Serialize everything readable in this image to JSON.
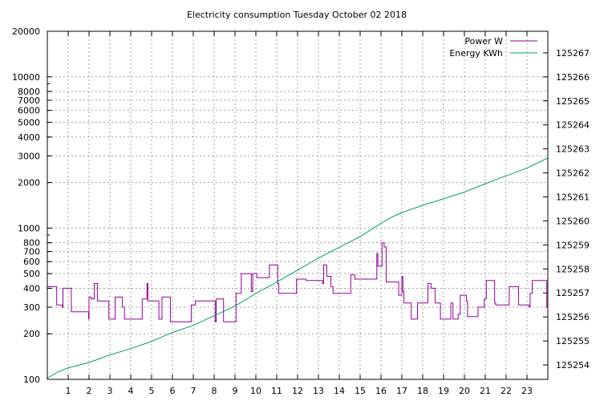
{
  "chart_data": {
    "type": "line",
    "title": "Electricity consumption Tuesday October 02 2018",
    "xlabel": "",
    "x_ticks": [
      1,
      2,
      3,
      4,
      5,
      6,
      7,
      8,
      9,
      10,
      11,
      12,
      13,
      14,
      15,
      16,
      17,
      18,
      19,
      20,
      21,
      22,
      23
    ],
    "xlim": [
      0,
      24
    ],
    "y_left": {
      "label": "",
      "scale": "log",
      "lim": [
        100,
        20000
      ],
      "ticks": [
        100,
        200,
        300,
        400,
        500,
        600,
        700,
        800,
        1000,
        2000,
        3000,
        4000,
        5000,
        6000,
        7000,
        8000,
        10000,
        20000
      ]
    },
    "y_right": {
      "label": "",
      "scale": "linear",
      "lim": [
        125253.4,
        125267.9
      ],
      "ticks": [
        125254,
        125255,
        125256,
        125257,
        125258,
        125259,
        125260,
        125261,
        125262,
        125263,
        125264,
        125265,
        125266,
        125267
      ]
    },
    "grid": true,
    "legend_position": "top-right",
    "series": [
      {
        "name": "Power W",
        "axis": "left",
        "color": "#940094",
        "step": true,
        "points": [
          [
            0,
            410
          ],
          [
            0.4,
            410
          ],
          [
            0.45,
            310
          ],
          [
            0.7,
            310
          ],
          [
            0.72,
            300
          ],
          [
            0.75,
            400
          ],
          [
            1.1,
            400
          ],
          [
            1.15,
            280
          ],
          [
            1.95,
            280
          ],
          [
            1.98,
            250
          ],
          [
            2.0,
            350
          ],
          [
            2.1,
            340
          ],
          [
            2.25,
            430
          ],
          [
            2.4,
            330
          ],
          [
            2.9,
            330
          ],
          [
            2.95,
            250
          ],
          [
            3.2,
            250
          ],
          [
            3.25,
            350
          ],
          [
            3.55,
            350
          ],
          [
            3.6,
            300
          ],
          [
            3.7,
            250
          ],
          [
            4.5,
            250
          ],
          [
            4.55,
            340
          ],
          [
            4.75,
            340
          ],
          [
            4.78,
            430
          ],
          [
            4.82,
            330
          ],
          [
            5.3,
            330
          ],
          [
            5.35,
            250
          ],
          [
            5.45,
            250
          ],
          [
            5.5,
            350
          ],
          [
            5.85,
            350
          ],
          [
            5.9,
            240
          ],
          [
            6.85,
            240
          ],
          [
            6.9,
            310
          ],
          [
            7.0,
            310
          ],
          [
            7.1,
            330
          ],
          [
            8.0,
            330
          ],
          [
            8.05,
            240
          ],
          [
            8.1,
            340
          ],
          [
            8.4,
            340
          ],
          [
            8.45,
            240
          ],
          [
            9.0,
            240
          ],
          [
            9.05,
            370
          ],
          [
            9.25,
            370
          ],
          [
            9.3,
            500
          ],
          [
            9.75,
            500
          ],
          [
            9.78,
            380
          ],
          [
            9.85,
            500
          ],
          [
            10.0,
            500
          ],
          [
            10.05,
            470
          ],
          [
            10.6,
            470
          ],
          [
            10.65,
            570
          ],
          [
            11.0,
            570
          ],
          [
            11.05,
            430
          ],
          [
            11.1,
            370
          ],
          [
            11.9,
            370
          ],
          [
            11.95,
            460
          ],
          [
            12.35,
            460
          ],
          [
            12.4,
            450
          ],
          [
            13.15,
            450
          ],
          [
            13.2,
            430
          ],
          [
            13.25,
            570
          ],
          [
            13.35,
            570
          ],
          [
            13.4,
            480
          ],
          [
            13.55,
            480
          ],
          [
            13.6,
            410
          ],
          [
            13.7,
            370
          ],
          [
            14.5,
            370
          ],
          [
            14.55,
            490
          ],
          [
            14.7,
            490
          ],
          [
            14.75,
            460
          ],
          [
            15.75,
            460
          ],
          [
            15.8,
            680
          ],
          [
            15.85,
            560
          ],
          [
            16.0,
            560
          ],
          [
            16.05,
            800
          ],
          [
            16.1,
            800
          ],
          [
            16.15,
            750
          ],
          [
            16.25,
            440
          ],
          [
            16.8,
            440
          ],
          [
            16.85,
            360
          ],
          [
            16.95,
            360
          ],
          [
            17.0,
            480
          ],
          [
            17.05,
            380
          ],
          [
            17.1,
            320
          ],
          [
            17.4,
            320
          ],
          [
            17.45,
            250
          ],
          [
            17.7,
            250
          ],
          [
            17.75,
            320
          ],
          [
            18.2,
            320
          ],
          [
            18.25,
            430
          ],
          [
            18.35,
            430
          ],
          [
            18.4,
            400
          ],
          [
            18.5,
            400
          ],
          [
            18.6,
            320
          ],
          [
            18.8,
            320
          ],
          [
            18.85,
            250
          ],
          [
            19.3,
            250
          ],
          [
            19.35,
            320
          ],
          [
            19.45,
            250
          ],
          [
            19.65,
            250
          ],
          [
            19.7,
            270
          ],
          [
            19.8,
            360
          ],
          [
            20.05,
            360
          ],
          [
            20.1,
            330
          ],
          [
            20.15,
            260
          ],
          [
            20.6,
            260
          ],
          [
            20.65,
            300
          ],
          [
            20.9,
            300
          ],
          [
            20.95,
            340
          ],
          [
            21.05,
            450
          ],
          [
            21.4,
            450
          ],
          [
            21.45,
            320
          ],
          [
            21.5,
            310
          ],
          [
            22.1,
            310
          ],
          [
            22.15,
            410
          ],
          [
            22.55,
            410
          ],
          [
            22.6,
            310
          ],
          [
            23.05,
            310
          ],
          [
            23.1,
            300
          ],
          [
            23.15,
            370
          ],
          [
            23.25,
            450
          ],
          [
            23.9,
            450
          ],
          [
            23.95,
            300
          ],
          [
            24.0,
            300
          ]
        ]
      },
      {
        "name": "Energy KWh",
        "axis": "right",
        "color": "#009e73",
        "step": false,
        "points": [
          [
            0,
            125253.45
          ],
          [
            0.5,
            125253.7
          ],
          [
            1,
            125253.88
          ],
          [
            2,
            125254.1
          ],
          [
            3,
            125254.42
          ],
          [
            4,
            125254.68
          ],
          [
            4.9,
            125254.95
          ],
          [
            6,
            125255.35
          ],
          [
            7,
            125255.65
          ],
          [
            8,
            125256.05
          ],
          [
            9,
            125256.45
          ],
          [
            10,
            125256.98
          ],
          [
            11,
            125257.45
          ],
          [
            12,
            125257.95
          ],
          [
            13,
            125258.45
          ],
          [
            14,
            125258.9
          ],
          [
            15,
            125259.35
          ],
          [
            16,
            125259.9
          ],
          [
            16.5,
            125260.15
          ],
          [
            17,
            125260.35
          ],
          [
            18,
            125260.65
          ],
          [
            19,
            125260.92
          ],
          [
            20,
            125261.2
          ],
          [
            21,
            125261.55
          ],
          [
            22,
            125261.88
          ],
          [
            23,
            125262.2
          ],
          [
            24,
            125262.62
          ]
        ]
      }
    ]
  }
}
